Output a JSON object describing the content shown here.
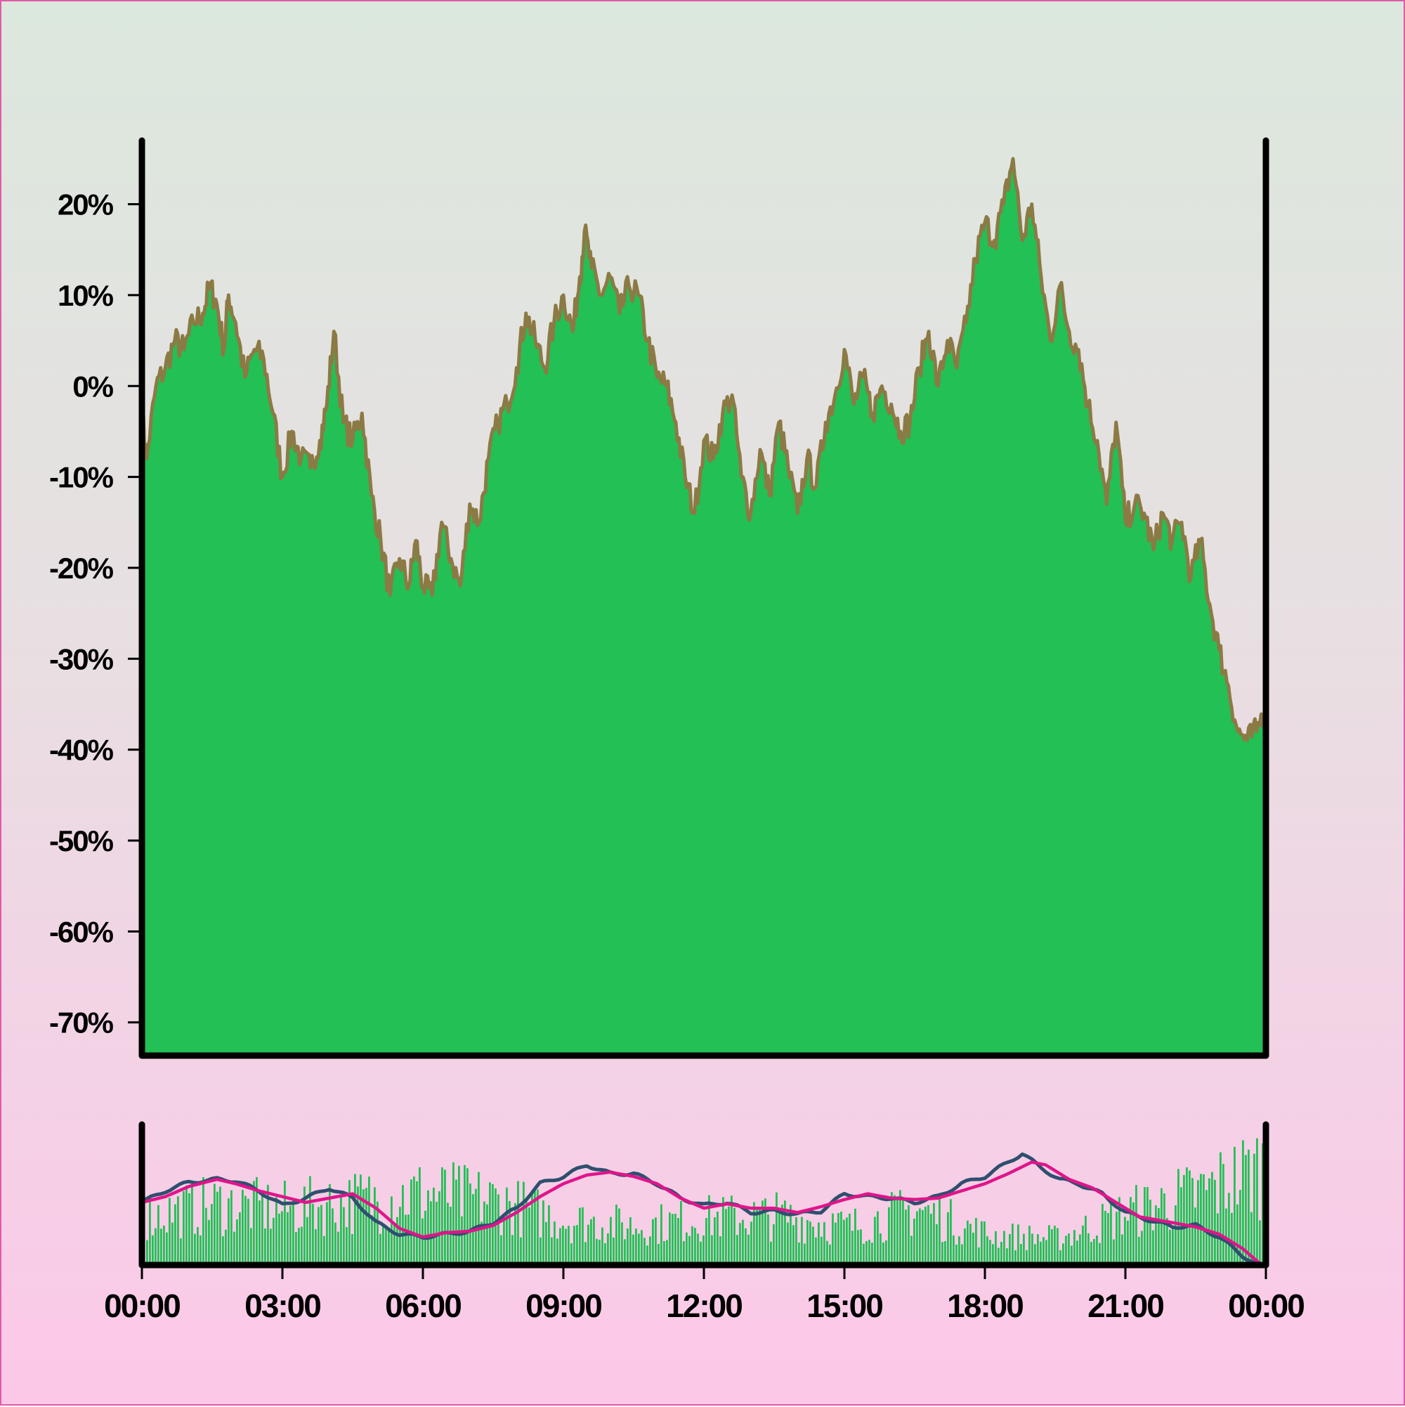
{
  "chart_data": [
    {
      "type": "area",
      "title": "",
      "xlabel": "",
      "ylabel": "",
      "x_tick_labels": [
        "00:00",
        "03:00",
        "06:00",
        "09:00",
        "12:00",
        "15:00",
        "18:00",
        "21:00",
        "00:00"
      ],
      "y_tick_labels": [
        "20%",
        "10%",
        "0%",
        "-10%",
        "-20%",
        "-30%",
        "-40%",
        "-50%",
        "-60%",
        "-70%"
      ],
      "y_ticks": [
        20,
        10,
        0,
        -10,
        -20,
        -30,
        -40,
        -50,
        -60,
        -70
      ],
      "ylim": [
        -73.5,
        27
      ],
      "xlim_hours": [
        0,
        24
      ],
      "grid": false,
      "series": [
        {
          "fill_color": "#22c055",
          "line_color": "#8c7a44",
          "points": [
            [
              0.0,
              -3
            ],
            [
              0.1,
              -8
            ],
            [
              0.3,
              0
            ],
            [
              0.5,
              2
            ],
            [
              0.7,
              5
            ],
            [
              0.9,
              4
            ],
            [
              1.1,
              7
            ],
            [
              1.3,
              8
            ],
            [
              1.45,
              11
            ],
            [
              1.6,
              9
            ],
            [
              1.75,
              4
            ],
            [
              1.85,
              10
            ],
            [
              2.0,
              7
            ],
            [
              2.2,
              1
            ],
            [
              2.4,
              4
            ],
            [
              2.6,
              3
            ],
            [
              2.8,
              -3
            ],
            [
              3.0,
              -10
            ],
            [
              3.2,
              -5
            ],
            [
              3.4,
              -8
            ],
            [
              3.6,
              -9
            ],
            [
              3.8,
              -6
            ],
            [
              3.95,
              -2
            ],
            [
              4.1,
              6
            ],
            [
              4.3,
              -4
            ],
            [
              4.5,
              -6
            ],
            [
              4.7,
              -3
            ],
            [
              4.9,
              -12
            ],
            [
              5.1,
              -17
            ],
            [
              5.3,
              -23
            ],
            [
              5.5,
              -19
            ],
            [
              5.7,
              -22
            ],
            [
              5.85,
              -17
            ],
            [
              6.0,
              -22
            ],
            [
              6.2,
              -23
            ],
            [
              6.4,
              -15
            ],
            [
              6.6,
              -19
            ],
            [
              6.8,
              -22
            ],
            [
              7.0,
              -13
            ],
            [
              7.2,
              -15
            ],
            [
              7.4,
              -8
            ],
            [
              7.6,
              -4
            ],
            [
              7.8,
              -2
            ],
            [
              8.0,
              2
            ],
            [
              8.2,
              8
            ],
            [
              8.4,
              5
            ],
            [
              8.6,
              2
            ],
            [
              8.8,
              7
            ],
            [
              9.0,
              10
            ],
            [
              9.2,
              6
            ],
            [
              9.35,
              12
            ],
            [
              9.45,
              17
            ],
            [
              9.6,
              13
            ],
            [
              9.8,
              10
            ],
            [
              10.0,
              12
            ],
            [
              10.2,
              8
            ],
            [
              10.4,
              11
            ],
            [
              10.6,
              10
            ],
            [
              10.8,
              5
            ],
            [
              11.0,
              1
            ],
            [
              11.2,
              0
            ],
            [
              11.4,
              -4
            ],
            [
              11.6,
              -10
            ],
            [
              11.8,
              -14
            ],
            [
              12.0,
              -6
            ],
            [
              12.2,
              -8
            ],
            [
              12.4,
              -3
            ],
            [
              12.6,
              -1
            ],
            [
              12.8,
              -10
            ],
            [
              13.0,
              -14
            ],
            [
              13.2,
              -7
            ],
            [
              13.4,
              -12
            ],
            [
              13.6,
              -4
            ],
            [
              13.8,
              -9
            ],
            [
              14.0,
              -14
            ],
            [
              14.2,
              -8
            ],
            [
              14.4,
              -11
            ],
            [
              14.6,
              -4
            ],
            [
              14.8,
              -1
            ],
            [
              15.0,
              4
            ],
            [
              15.2,
              -2
            ],
            [
              15.4,
              1
            ],
            [
              15.6,
              -3
            ],
            [
              15.8,
              0
            ],
            [
              16.0,
              -2
            ],
            [
              16.2,
              -5
            ],
            [
              16.4,
              -4
            ],
            [
              16.6,
              2
            ],
            [
              16.8,
              6
            ],
            [
              17.0,
              0
            ],
            [
              17.2,
              5
            ],
            [
              17.4,
              2
            ],
            [
              17.6,
              7
            ],
            [
              17.8,
              14
            ],
            [
              18.0,
              18
            ],
            [
              18.2,
              16
            ],
            [
              18.4,
              20
            ],
            [
              18.6,
              25
            ],
            [
              18.8,
              16
            ],
            [
              19.0,
              20
            ],
            [
              19.2,
              12
            ],
            [
              19.4,
              5
            ],
            [
              19.6,
              11
            ],
            [
              19.8,
              6
            ],
            [
              20.0,
              4
            ],
            [
              20.2,
              -2
            ],
            [
              20.4,
              -6
            ],
            [
              20.6,
              -13
            ],
            [
              20.8,
              -4
            ],
            [
              21.0,
              -15
            ],
            [
              21.2,
              -13
            ],
            [
              21.4,
              -14
            ],
            [
              21.6,
              -18
            ],
            [
              21.8,
              -14
            ],
            [
              22.0,
              -17
            ],
            [
              22.2,
              -15
            ],
            [
              22.4,
              -21
            ],
            [
              22.6,
              -17
            ],
            [
              22.8,
              -24
            ],
            [
              23.0,
              -29
            ],
            [
              23.2,
              -33
            ],
            [
              23.4,
              -38
            ],
            [
              23.6,
              -39
            ],
            [
              23.8,
              -38
            ],
            [
              24.0,
              -35
            ]
          ]
        }
      ]
    },
    {
      "type": "bar",
      "title": "",
      "x_tick_labels": [
        "00:00",
        "03:00",
        "06:00",
        "09:00",
        "12:00",
        "15:00",
        "18:00",
        "21:00",
        "00:00"
      ],
      "xlim_hours": [
        0,
        24
      ],
      "ylim": [
        0,
        1
      ],
      "grid": false,
      "bar_color": "#22c055",
      "bar_level_envelope": [
        [
          0.0,
          0.42
        ],
        [
          1.5,
          0.52
        ],
        [
          3.0,
          0.48
        ],
        [
          4.5,
          0.55
        ],
        [
          6.0,
          0.62
        ],
        [
          7.5,
          0.55
        ],
        [
          9.0,
          0.38
        ],
        [
          10.5,
          0.33
        ],
        [
          12.0,
          0.4
        ],
        [
          13.5,
          0.42
        ],
        [
          15.0,
          0.32
        ],
        [
          16.5,
          0.48
        ],
        [
          18.0,
          0.25
        ],
        [
          19.5,
          0.22
        ],
        [
          21.0,
          0.45
        ],
        [
          22.5,
          0.62
        ],
        [
          24.0,
          0.88
        ]
      ],
      "overlay_lines": [
        {
          "color": "#2f4f6f",
          "points": [
            [
              0.0,
              0.42
            ],
            [
              0.5,
              0.5
            ],
            [
              1.0,
              0.56
            ],
            [
              1.6,
              0.58
            ],
            [
              2.0,
              0.57
            ],
            [
              2.5,
              0.5
            ],
            [
              3.0,
              0.4
            ],
            [
              3.5,
              0.45
            ],
            [
              4.0,
              0.52
            ],
            [
              4.5,
              0.45
            ],
            [
              5.0,
              0.28
            ],
            [
              5.5,
              0.2
            ],
            [
              6.0,
              0.18
            ],
            [
              6.5,
              0.2
            ],
            [
              7.0,
              0.22
            ],
            [
              7.5,
              0.28
            ],
            [
              8.0,
              0.38
            ],
            [
              8.5,
              0.55
            ],
            [
              9.0,
              0.6
            ],
            [
              9.5,
              0.68
            ],
            [
              10.0,
              0.62
            ],
            [
              10.5,
              0.62
            ],
            [
              11.0,
              0.55
            ],
            [
              11.5,
              0.45
            ],
            [
              12.0,
              0.4
            ],
            [
              12.5,
              0.42
            ],
            [
              13.0,
              0.35
            ],
            [
              13.5,
              0.36
            ],
            [
              14.0,
              0.34
            ],
            [
              14.5,
              0.36
            ],
            [
              15.0,
              0.48
            ],
            [
              15.5,
              0.46
            ],
            [
              16.0,
              0.45
            ],
            [
              16.5,
              0.42
            ],
            [
              17.0,
              0.46
            ],
            [
              17.5,
              0.55
            ],
            [
              18.0,
              0.6
            ],
            [
              18.5,
              0.7
            ],
            [
              18.8,
              0.76
            ],
            [
              19.2,
              0.66
            ],
            [
              19.6,
              0.58
            ],
            [
              20.0,
              0.55
            ],
            [
              20.5,
              0.48
            ],
            [
              21.0,
              0.35
            ],
            [
              21.5,
              0.3
            ],
            [
              22.0,
              0.25
            ],
            [
              22.5,
              0.26
            ],
            [
              23.0,
              0.18
            ],
            [
              23.5,
              0.05
            ],
            [
              24.0,
              -0.04
            ]
          ]
        },
        {
          "color": "#e0158a",
          "points": [
            [
              0.0,
              0.42
            ],
            [
              0.5,
              0.46
            ],
            [
              1.0,
              0.53
            ],
            [
              1.6,
              0.58
            ],
            [
              2.0,
              0.55
            ],
            [
              2.5,
              0.5
            ],
            [
              3.0,
              0.46
            ],
            [
              3.5,
              0.42
            ],
            [
              4.0,
              0.45
            ],
            [
              4.5,
              0.48
            ],
            [
              5.0,
              0.38
            ],
            [
              5.5,
              0.24
            ],
            [
              6.0,
              0.18
            ],
            [
              6.5,
              0.21
            ],
            [
              7.0,
              0.22
            ],
            [
              7.5,
              0.26
            ],
            [
              8.0,
              0.35
            ],
            [
              8.5,
              0.46
            ],
            [
              9.0,
              0.55
            ],
            [
              9.5,
              0.61
            ],
            [
              10.0,
              0.63
            ],
            [
              10.5,
              0.6
            ],
            [
              11.0,
              0.55
            ],
            [
              11.5,
              0.45
            ],
            [
              12.0,
              0.38
            ],
            [
              12.5,
              0.41
            ],
            [
              13.0,
              0.38
            ],
            [
              13.5,
              0.38
            ],
            [
              14.0,
              0.35
            ],
            [
              14.5,
              0.39
            ],
            [
              15.0,
              0.44
            ],
            [
              15.5,
              0.48
            ],
            [
              16.0,
              0.45
            ],
            [
              16.5,
              0.44
            ],
            [
              17.0,
              0.45
            ],
            [
              17.5,
              0.5
            ],
            [
              18.0,
              0.55
            ],
            [
              18.5,
              0.62
            ],
            [
              19.0,
              0.7
            ],
            [
              19.3,
              0.68
            ],
            [
              19.8,
              0.58
            ],
            [
              20.3,
              0.52
            ],
            [
              20.8,
              0.42
            ],
            [
              21.3,
              0.32
            ],
            [
              22.0,
              0.28
            ],
            [
              22.5,
              0.25
            ],
            [
              23.0,
              0.2
            ],
            [
              23.5,
              0.1
            ],
            [
              24.0,
              -0.04
            ]
          ]
        }
      ]
    }
  ]
}
